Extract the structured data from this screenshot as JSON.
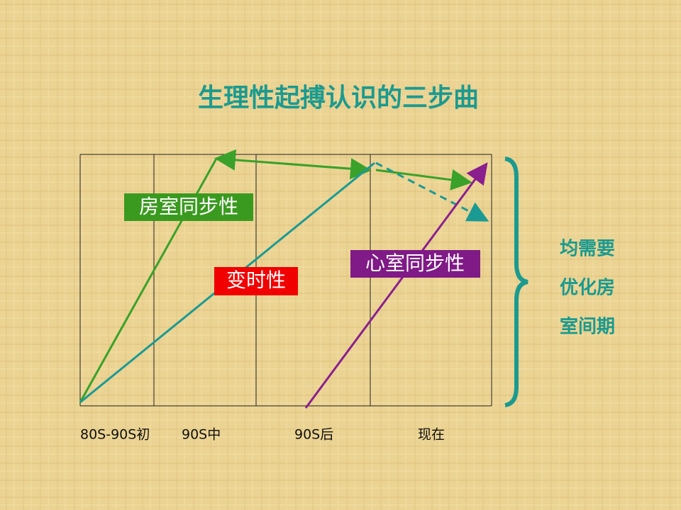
{
  "title": "生理性起搏认识的三步曲",
  "labels": [
    "房室同步性",
    "变时性",
    "心室同步性"
  ],
  "x_labels": [
    "80S-90S初",
    "90S中",
    "90S后",
    "现在"
  ],
  "side_note": [
    "均需要",
    "优化房",
    "室间期"
  ]
}
